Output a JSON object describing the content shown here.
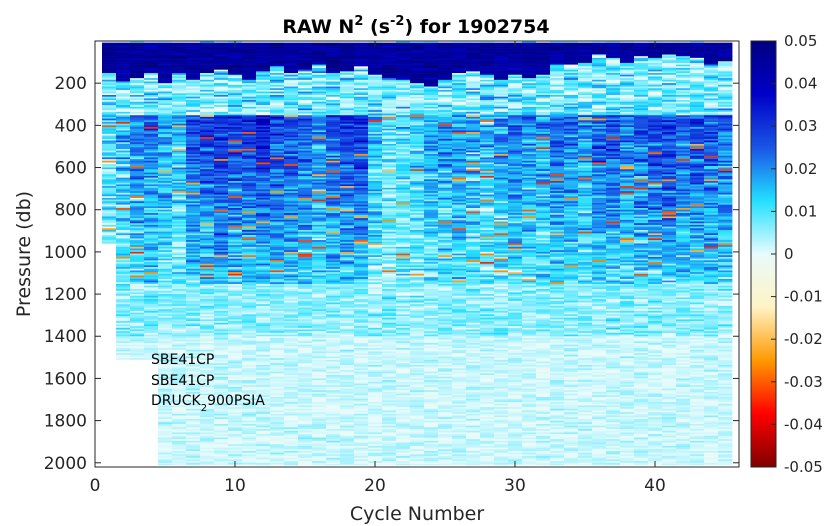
{
  "chart_data": {
    "type": "heatmap",
    "title": {
      "prefix": "RAW N",
      "sup1": "2",
      "middle": " (s",
      "sup2": "-2",
      "suffix": ") for 1902754"
    },
    "xlabel": "Cycle Number",
    "ylabel": "Pressure (db)",
    "xlim": [
      0,
      46
    ],
    "ylim": [
      2020,
      0
    ],
    "y_reversed": true,
    "x_ticks": [
      0,
      10,
      20,
      30,
      40
    ],
    "x_tick_labels": [
      "0",
      "10",
      "20",
      "30",
      "40"
    ],
    "y_ticks": [
      200,
      400,
      600,
      800,
      1000,
      1200,
      1400,
      1600,
      1800,
      2000
    ],
    "y_tick_labels": [
      "200",
      "400",
      "600",
      "800",
      "1000",
      "1200",
      "1400",
      "1600",
      "1800",
      "2000"
    ],
    "colorbar": {
      "clim": [
        -0.05,
        0.05
      ],
      "ticks": [
        0.05,
        0.04,
        0.03,
        0.02,
        0.01,
        0,
        -0.01,
        -0.02,
        -0.03,
        -0.04,
        -0.05
      ],
      "tick_labels": [
        "0.05",
        "0.04",
        "0.03",
        "0.02",
        "0.01",
        "0",
        "-0.01",
        "-0.02",
        "-0.03",
        "-0.04",
        "-0.05"
      ],
      "colors": [
        "#7f0000",
        "#ff0000",
        "#ff9900",
        "#fff3c4",
        "#e8fbfc",
        "#22e0ff",
        "#1a55e6",
        "#0000c8",
        "#000080"
      ]
    },
    "cycles": {
      "first": 1,
      "last": 45,
      "max_pressure_by_cycle": [
        960,
        1510,
        1510,
        1510,
        2010,
        2010,
        2010,
        2010,
        2010,
        2010,
        2010,
        2010,
        2010,
        2010,
        2010,
        2010,
        2010,
        2010,
        2010,
        2010,
        2010,
        2010,
        2010,
        2010,
        2010,
        2010,
        2010,
        2010,
        2010,
        2010,
        2010,
        2010,
        2010,
        2010,
        2010,
        2010,
        2010,
        2010,
        2010,
        2010,
        2010,
        2010,
        2010,
        2010,
        2010
      ],
      "strong_stratification_depth_db": [
        150,
        190,
        170,
        150,
        200,
        150,
        180,
        150,
        130,
        160,
        180,
        140,
        120,
        150,
        130,
        110,
        150,
        140,
        120,
        160,
        170,
        180,
        200,
        210,
        180,
        150,
        140,
        160,
        180,
        160,
        170,
        160,
        110,
        110,
        100,
        60,
        80,
        100,
        70,
        80,
        60,
        70,
        80,
        110,
        90
      ],
      "mid_layer_strength_n2": [
        0.012,
        0.016,
        0.022,
        0.024,
        0.02,
        0.016,
        0.028,
        0.03,
        0.032,
        0.028,
        0.03,
        0.034,
        0.03,
        0.028,
        0.026,
        0.022,
        0.028,
        0.03,
        0.032,
        0.016,
        0.01,
        0.012,
        0.014,
        0.02,
        0.02,
        0.022,
        0.018,
        0.016,
        0.02,
        0.024,
        0.022,
        0.02,
        0.026,
        0.024,
        0.02,
        0.026,
        0.028,
        0.024,
        0.026,
        0.028,
        0.03,
        0.026,
        0.028,
        0.028,
        0.026
      ]
    },
    "annotations": [
      "SBE41CP",
      "SBE41CP",
      {
        "text": "DRUCK",
        "sub": "2",
        "suffix": "900PSIA"
      }
    ]
  }
}
